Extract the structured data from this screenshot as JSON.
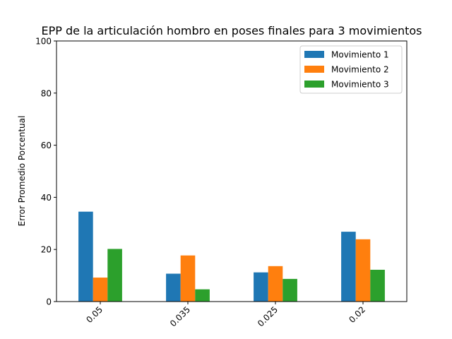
{
  "chart_data": {
    "type": "bar",
    "title": "EPP de la articulación hombro en poses finales para 3 movimientos",
    "xlabel": "",
    "ylabel": "Error Promedio Porcentual",
    "categories": [
      "0.05",
      "0.035",
      "0.025",
      "0.02"
    ],
    "ylim": [
      0,
      100
    ],
    "yticks": [
      0,
      20,
      40,
      60,
      80,
      100
    ],
    "grid": false,
    "legend_position": "top-right",
    "x_tick_rotation_deg": 45,
    "series": [
      {
        "name": "Movimiento 1",
        "color": "#1f77b4",
        "values": [
          34.5,
          10.7,
          11.2,
          26.8
        ]
      },
      {
        "name": "Movimiento 2",
        "color": "#ff7f0e",
        "values": [
          9.2,
          17.7,
          13.6,
          23.9
        ]
      },
      {
        "name": "Movimiento 3",
        "color": "#2ca02c",
        "values": [
          20.2,
          4.7,
          8.7,
          12.2
        ]
      }
    ]
  }
}
